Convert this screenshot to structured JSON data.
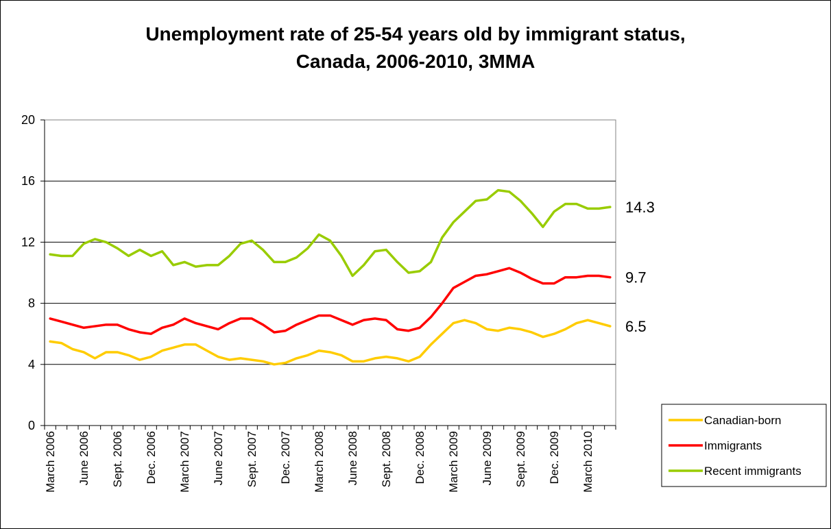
{
  "chart_data": {
    "type": "line",
    "title_lines": [
      "Unemployment rate of 25-54 years old by immigrant status,",
      "Canada, 2006-2010, 3MMA"
    ],
    "xlabel": "",
    "ylabel": "",
    "ylim": [
      0,
      20
    ],
    "y_ticks": [
      0,
      4,
      8,
      12,
      16,
      20
    ],
    "grid": "horizontal",
    "legend_position": "bottom-right",
    "x_tick_labels": [
      "March 2006",
      "June 2006",
      "Sept. 2006",
      "Dec. 2006",
      "March 2007",
      "June 2007",
      "Sept. 2007",
      "Dec. 2007",
      "March 2008",
      "June 2008",
      "Sept. 2008",
      "Dec. 2008",
      "March 2009",
      "June 2009",
      "Sept. 2009",
      "Dec. 2009",
      "March 2010"
    ],
    "x": [
      "Mar 2006",
      "Apr 2006",
      "May 2006",
      "Jun 2006",
      "Jul 2006",
      "Aug 2006",
      "Sep 2006",
      "Oct 2006",
      "Nov 2006",
      "Dec 2006",
      "Jan 2007",
      "Feb 2007",
      "Mar 2007",
      "Apr 2007",
      "May 2007",
      "Jun 2007",
      "Jul 2007",
      "Aug 2007",
      "Sep 2007",
      "Oct 2007",
      "Nov 2007",
      "Dec 2007",
      "Jan 2008",
      "Feb 2008",
      "Mar 2008",
      "Apr 2008",
      "May 2008",
      "Jun 2008",
      "Jul 2008",
      "Aug 2008",
      "Sep 2008",
      "Oct 2008",
      "Nov 2008",
      "Dec 2008",
      "Jan 2009",
      "Feb 2009",
      "Mar 2009",
      "Apr 2009",
      "May 2009",
      "Jun 2009",
      "Jul 2009",
      "Aug 2009",
      "Sep 2009",
      "Oct 2009",
      "Nov 2009",
      "Dec 2009",
      "Jan 2010",
      "Feb 2010",
      "Mar 2010",
      "Apr 2010",
      "May 2010"
    ],
    "series": [
      {
        "name": "Canadian-born",
        "color": "#FFCC00",
        "end_label": "6.5",
        "values": [
          5.5,
          5.4,
          5.0,
          4.8,
          4.4,
          4.8,
          4.8,
          4.6,
          4.3,
          4.5,
          4.9,
          5.1,
          5.3,
          5.3,
          4.9,
          4.5,
          4.3,
          4.4,
          4.3,
          4.2,
          4.0,
          4.1,
          4.4,
          4.6,
          4.9,
          4.8,
          4.6,
          4.2,
          4.2,
          4.4,
          4.5,
          4.4,
          4.2,
          4.5,
          5.3,
          6.0,
          6.7,
          6.9,
          6.7,
          6.3,
          6.2,
          6.4,
          6.3,
          6.1,
          5.8,
          6.0,
          6.3,
          6.7,
          6.9,
          6.7,
          6.5
        ]
      },
      {
        "name": "Immigrants",
        "color": "#FF0000",
        "end_label": "9.7",
        "values": [
          7.0,
          6.8,
          6.6,
          6.4,
          6.5,
          6.6,
          6.6,
          6.3,
          6.1,
          6.0,
          6.4,
          6.6,
          7.0,
          6.7,
          6.5,
          6.3,
          6.7,
          7.0,
          7.0,
          6.6,
          6.1,
          6.2,
          6.6,
          6.9,
          7.2,
          7.2,
          6.9,
          6.6,
          6.9,
          7.0,
          6.9,
          6.3,
          6.2,
          6.4,
          7.1,
          8.0,
          9.0,
          9.4,
          9.8,
          9.9,
          10.1,
          10.3,
          10.0,
          9.6,
          9.3,
          9.3,
          9.7,
          9.7,
          9.8,
          9.8,
          9.7
        ]
      },
      {
        "name": "Recent immigrants",
        "color": "#99CC00",
        "end_label": "14.3",
        "values": [
          11.2,
          11.1,
          11.1,
          11.9,
          12.2,
          12.0,
          11.6,
          11.1,
          11.5,
          11.1,
          11.4,
          10.5,
          10.7,
          10.4,
          10.5,
          10.5,
          11.1,
          11.9,
          12.1,
          11.5,
          10.7,
          10.7,
          11.0,
          11.6,
          12.5,
          12.1,
          11.1,
          9.8,
          10.5,
          11.4,
          11.5,
          10.7,
          10.0,
          10.1,
          10.7,
          12.3,
          13.3,
          14.0,
          14.7,
          14.8,
          15.4,
          15.3,
          14.7,
          13.9,
          13.0,
          14.0,
          14.5,
          14.5,
          14.2,
          14.2,
          14.3
        ]
      }
    ]
  }
}
